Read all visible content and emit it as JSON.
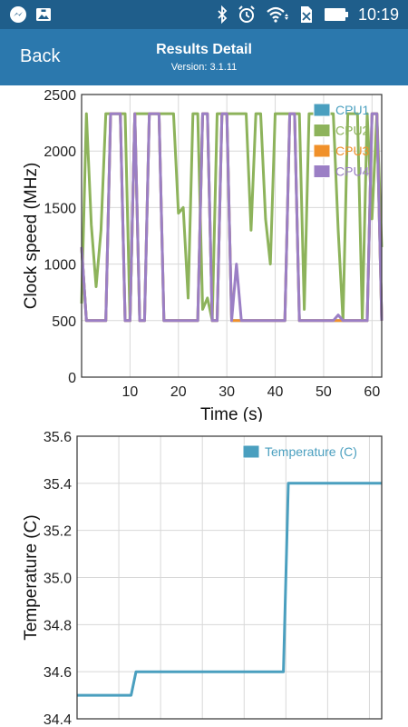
{
  "status_bar": {
    "time": "10:19",
    "left_icons": [
      "messenger-icon",
      "gallery-icon"
    ],
    "right_icons": [
      "bluetooth-icon",
      "alarm-icon",
      "wifi-icon",
      "no-sim-icon",
      "battery-icon"
    ]
  },
  "header": {
    "back_label": "Back",
    "title": "Results Detail",
    "version": "Version: 3.1.11"
  },
  "colors": {
    "app_bar": "#2b78ad",
    "status_bar": "#1f5e8b",
    "cpu1": "#4a9fbf",
    "cpu2": "#8db35b",
    "cpu3": "#f0902a",
    "cpu4": "#9b7fc5",
    "temperature": "#4a9fbf"
  },
  "chart_data": [
    {
      "type": "line",
      "xlabel": "Time (s)",
      "ylabel": "Clock speed (MHz)",
      "xlim": [
        0,
        62
      ],
      "ylim": [
        0,
        2500
      ],
      "xticks": [
        10,
        20,
        30,
        40,
        50,
        60
      ],
      "yticks": [
        0,
        500,
        1000,
        1500,
        2000,
        2500
      ],
      "grid": true,
      "legend": "top-right",
      "series": [
        {
          "name": "CPU1",
          "x": [
            0,
            1,
            2,
            3,
            4,
            5,
            6,
            7,
            8,
            9,
            10,
            11,
            12,
            13,
            14,
            15,
            16,
            17,
            18,
            19,
            20,
            21,
            22,
            23,
            24,
            25,
            26,
            27,
            28,
            29,
            30,
            31,
            32,
            33,
            34,
            35,
            36,
            37,
            38,
            39,
            40,
            41,
            42,
            43,
            44,
            45,
            46,
            47,
            48,
            49,
            50,
            51,
            52,
            53,
            54,
            55,
            56,
            57,
            58,
            59,
            60,
            61,
            62
          ],
          "values": [
            1150,
            500,
            500,
            500,
            500,
            500,
            2330,
            2330,
            2330,
            500,
            500,
            2330,
            500,
            500,
            2330,
            2330,
            2330,
            500,
            500,
            500,
            500,
            500,
            500,
            500,
            500,
            2330,
            2330,
            500,
            500,
            2330,
            2330,
            500,
            500,
            500,
            500,
            500,
            500,
            500,
            500,
            500,
            500,
            500,
            500,
            2330,
            2330,
            500,
            500,
            500,
            500,
            500,
            500,
            500,
            500,
            500,
            500,
            500,
            500,
            500,
            500,
            500,
            2330,
            2330,
            500
          ]
        },
        {
          "name": "CPU2",
          "x": [
            0,
            1,
            2,
            3,
            4,
            5,
            6,
            7,
            8,
            9,
            10,
            11,
            12,
            13,
            14,
            15,
            16,
            17,
            18,
            19,
            20,
            21,
            22,
            23,
            24,
            25,
            26,
            27,
            28,
            29,
            30,
            31,
            32,
            33,
            34,
            35,
            36,
            37,
            38,
            39,
            40,
            41,
            42,
            43,
            44,
            45,
            46,
            47,
            48,
            49,
            50,
            51,
            52,
            53,
            54,
            55,
            56,
            57,
            58,
            59,
            60,
            61,
            62
          ],
          "values": [
            650,
            2330,
            1350,
            800,
            1300,
            2330,
            2330,
            2330,
            2330,
            2330,
            500,
            2330,
            2330,
            2330,
            2330,
            2330,
            2330,
            2330,
            2330,
            2330,
            1450,
            1500,
            700,
            2330,
            2330,
            600,
            700,
            500,
            2330,
            2330,
            2330,
            2330,
            2330,
            2330,
            2330,
            1300,
            2330,
            2330,
            1400,
            1000,
            2330,
            2330,
            2330,
            2330,
            2330,
            2330,
            600,
            2330,
            2330,
            2330,
            2330,
            2330,
            2330,
            1300,
            500,
            2330,
            2330,
            2330,
            500,
            2330,
            1400,
            2330,
            1150
          ]
        },
        {
          "name": "CPU3",
          "x": [
            0,
            1,
            2,
            3,
            4,
            5,
            6,
            7,
            8,
            9,
            10,
            11,
            12,
            13,
            14,
            15,
            16,
            17,
            18,
            19,
            20,
            21,
            22,
            23,
            24,
            25,
            26,
            27,
            28,
            29,
            30,
            31,
            32,
            33,
            34,
            35,
            36,
            37,
            38,
            39,
            40,
            41,
            42,
            43,
            44,
            45,
            46,
            47,
            48,
            49,
            50,
            51,
            52,
            53,
            54,
            55,
            56,
            57,
            58,
            59,
            60,
            61,
            62
          ],
          "values": [
            1150,
            500,
            500,
            500,
            500,
            500,
            2330,
            2330,
            2330,
            500,
            500,
            2330,
            500,
            500,
            2330,
            2330,
            2330,
            500,
            500,
            500,
            500,
            500,
            500,
            500,
            500,
            2330,
            2330,
            500,
            500,
            2330,
            2330,
            500,
            500,
            500,
            500,
            500,
            500,
            500,
            500,
            500,
            500,
            500,
            500,
            2330,
            2330,
            500,
            500,
            500,
            500,
            500,
            500,
            500,
            500,
            500,
            500,
            500,
            500,
            500,
            500,
            500,
            2330,
            2330,
            500
          ]
        },
        {
          "name": "CPU4",
          "x": [
            0,
            1,
            2,
            3,
            4,
            5,
            6,
            7,
            8,
            9,
            10,
            11,
            12,
            13,
            14,
            15,
            16,
            17,
            18,
            19,
            20,
            21,
            22,
            23,
            24,
            25,
            26,
            27,
            28,
            29,
            30,
            31,
            32,
            33,
            34,
            35,
            36,
            37,
            38,
            39,
            40,
            41,
            42,
            43,
            44,
            45,
            46,
            47,
            48,
            49,
            50,
            51,
            52,
            53,
            54,
            55,
            56,
            57,
            58,
            59,
            60,
            61,
            62
          ],
          "values": [
            1150,
            500,
            500,
            500,
            500,
            500,
            2330,
            2330,
            2330,
            500,
            500,
            2330,
            500,
            500,
            2330,
            2330,
            2330,
            500,
            500,
            500,
            500,
            500,
            500,
            500,
            500,
            2330,
            2330,
            500,
            500,
            2330,
            2330,
            500,
            1000,
            500,
            500,
            500,
            500,
            500,
            500,
            500,
            500,
            500,
            500,
            2330,
            2330,
            500,
            500,
            500,
            500,
            500,
            500,
            500,
            500,
            550,
            500,
            500,
            500,
            500,
            500,
            500,
            2330,
            2330,
            500
          ]
        }
      ]
    },
    {
      "type": "line",
      "xlabel": "",
      "ylabel": "Temperature (C)",
      "xlim": [
        0,
        62
      ],
      "ylim": [
        34.4,
        35.6
      ],
      "yticks": [
        34.4,
        34.6,
        34.8,
        35.0,
        35.2,
        35.4,
        35.6
      ],
      "ytick_labels": [
        "34.4",
        "34.6",
        "34.8",
        "35.0",
        "35.2",
        "35.4",
        "35.6"
      ],
      "grid": true,
      "legend": "top-right",
      "series": [
        {
          "name": "Temperature (C)",
          "x": [
            0,
            11,
            12,
            42,
            43,
            62
          ],
          "values": [
            34.5,
            34.5,
            34.6,
            34.6,
            35.4,
            35.4
          ]
        }
      ]
    }
  ]
}
